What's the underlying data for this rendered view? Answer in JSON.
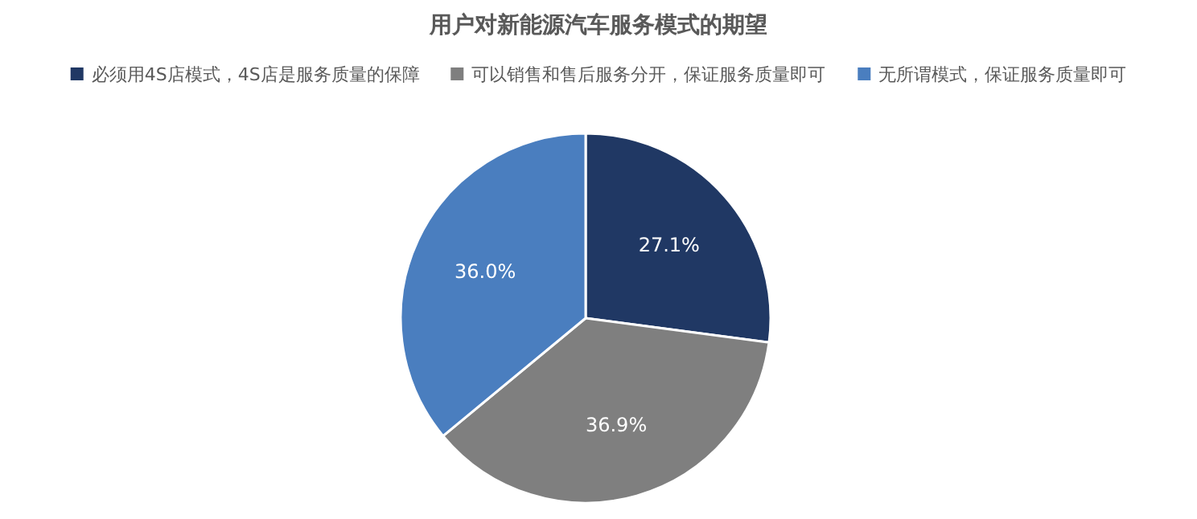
{
  "chart_data": {
    "type": "pie",
    "title": "用户对新能源汽车服务模式的期望",
    "categories": [
      "必须用4S店模式，4S店是服务质量的保障",
      "可以销售和售后服务分开，保证服务质量即可",
      "无所谓模式，保证服务质量即可"
    ],
    "values": [
      27.1,
      36.9,
      36.0
    ],
    "colors": [
      "#203864",
      "#7f7f7f",
      "#4a7ebf"
    ],
    "value_labels": [
      "27.1%",
      "36.9%",
      "36.0%"
    ],
    "legend": "top"
  }
}
